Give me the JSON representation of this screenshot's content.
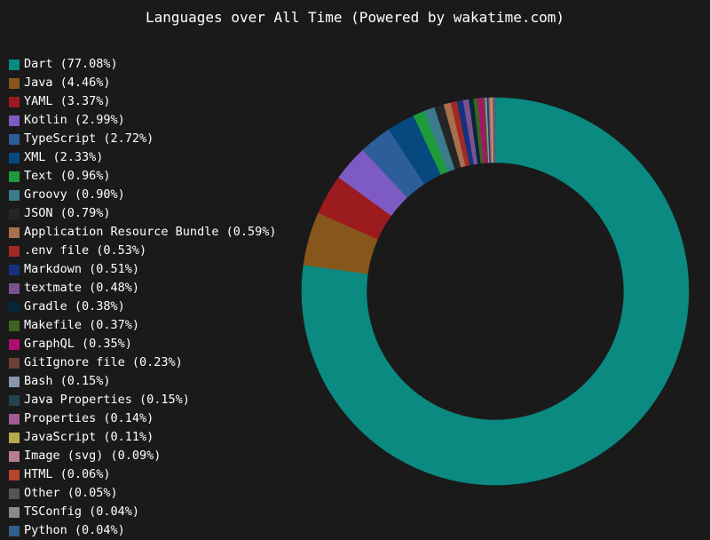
{
  "chart_data": {
    "type": "pie",
    "title": "Languages over All Time (Powered by wakatime.com)",
    "donut": true,
    "legend_position": "left",
    "series": [
      {
        "name": "Dart",
        "label": "Dart (77.08%)",
        "value": 77.08,
        "color": "#0a8a80"
      },
      {
        "name": "Java",
        "label": "Java (4.46%)",
        "value": 4.46,
        "color": "#87561a"
      },
      {
        "name": "YAML",
        "label": "YAML (3.37%)",
        "value": 3.37,
        "color": "#9b1b1f"
      },
      {
        "name": "Kotlin",
        "label": "Kotlin (2.99%)",
        "value": 2.99,
        "color": "#7e5bc4"
      },
      {
        "name": "TypeScript",
        "label": "TypeScript (2.72%)",
        "value": 2.72,
        "color": "#2d5e9a"
      },
      {
        "name": "XML",
        "label": "XML (2.33%)",
        "value": 2.33,
        "color": "#06497f"
      },
      {
        "name": "Text",
        "label": "Text (0.96%)",
        "value": 0.96,
        "color": "#1f9a3b"
      },
      {
        "name": "Groovy",
        "label": "Groovy (0.90%)",
        "value": 0.9,
        "color": "#3a7b8c"
      },
      {
        "name": "JSON",
        "label": "JSON (0.79%)",
        "value": 0.79,
        "color": "#252525"
      },
      {
        "name": "Application Resource Bundle",
        "label": "Application Resource Bundle (0.59%)",
        "value": 0.59,
        "color": "#a8704c"
      },
      {
        "name": ".env file",
        "label": ".env file (0.53%)",
        "value": 0.53,
        "color": "#a12a25"
      },
      {
        "name": "Markdown",
        "label": "Markdown (0.51%)",
        "value": 0.51,
        "color": "#15327e"
      },
      {
        "name": "textmate",
        "label": "textmate (0.48%)",
        "value": 0.48,
        "color": "#7a5290"
      },
      {
        "name": "Gradle",
        "label": "Gradle (0.38%)",
        "value": 0.38,
        "color": "#06273a"
      },
      {
        "name": "Makefile",
        "label": "Makefile (0.37%)",
        "value": 0.37,
        "color": "#3f6421"
      },
      {
        "name": "GraphQL",
        "label": "GraphQL (0.35%)",
        "value": 0.35,
        "color": "#b00d73"
      },
      {
        "name": "GitIgnore file",
        "label": "GitIgnore file (0.23%)",
        "value": 0.23,
        "color": "#6c4136"
      },
      {
        "name": "Bash",
        "label": "Bash (0.15%)",
        "value": 0.15,
        "color": "#8896ab"
      },
      {
        "name": "Java Properties",
        "label": "Java Properties (0.15%)",
        "value": 0.15,
        "color": "#25434e"
      },
      {
        "name": "Properties",
        "label": "Properties (0.14%)",
        "value": 0.14,
        "color": "#a35b93"
      },
      {
        "name": "JavaScript",
        "label": "JavaScript (0.11%)",
        "value": 0.11,
        "color": "#b7a94c"
      },
      {
        "name": "Image (svg)",
        "label": "Image (svg) (0.09%)",
        "value": 0.09,
        "color": "#b77d95"
      },
      {
        "name": "HTML",
        "label": "HTML (0.06%)",
        "value": 0.06,
        "color": "#b6452b"
      },
      {
        "name": "Other",
        "label": "Other (0.05%)",
        "value": 0.05,
        "color": "#555555"
      },
      {
        "name": "TSConfig",
        "label": "TSConfig (0.04%)",
        "value": 0.04,
        "color": "#8a8a8a"
      },
      {
        "name": "Python",
        "label": "Python (0.04%)",
        "value": 0.04,
        "color": "#2f5f8a"
      }
    ]
  }
}
